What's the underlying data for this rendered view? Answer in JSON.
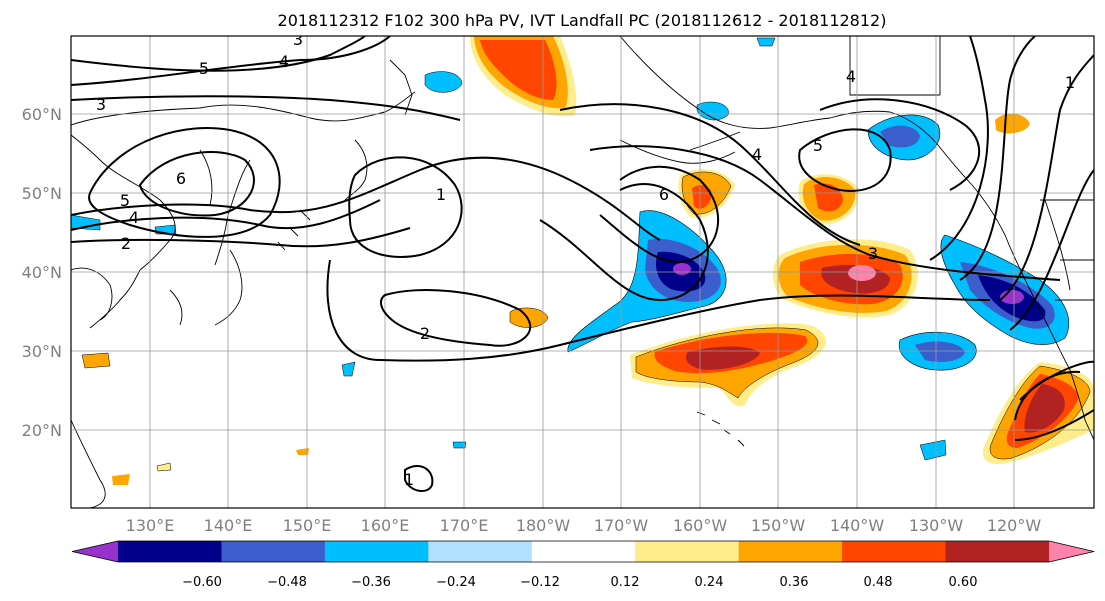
{
  "title": "2018112312 F102 300 hPa PV, IVT Landfall PC (2018112612 - 2018112812)",
  "lat_labels": [
    "60°N",
    "50°N",
    "40°N",
    "30°N",
    "20°N"
  ],
  "lon_labels": [
    "130°E",
    "140°E",
    "150°E",
    "160°E",
    "170°E",
    "180°W",
    "170°W",
    "160°W",
    "150°W",
    "140°W",
    "130°W",
    "120°W"
  ],
  "colorbar": {
    "tick_labels": [
      "−0.60",
      "−0.48",
      "−0.36",
      "−0.24",
      "−0.12",
      "0.12",
      "0.24",
      "0.36",
      "0.48",
      "0.60"
    ],
    "colors": [
      "#9932cc",
      "#00008b",
      "#3a5fcd",
      "#00bfff",
      "#b0e2ff",
      "#ffffff",
      "#ffec8b",
      "#ffa500",
      "#ff4500",
      "#b22222",
      "#ff82ab"
    ]
  },
  "contour_labels": [
    "3",
    "5",
    "4",
    "3",
    "6",
    "5",
    "4",
    "2",
    "1",
    "2",
    "6",
    "5",
    "4",
    "3",
    "4",
    "1",
    "1"
  ]
}
